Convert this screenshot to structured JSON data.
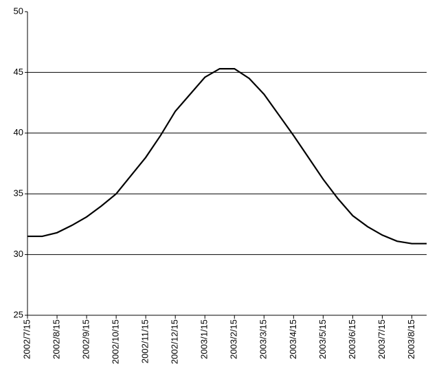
{
  "chart_data": {
    "type": "line",
    "categories": [
      "2002/7/15",
      null,
      "2002/8/15",
      null,
      "2002/9/15",
      null,
      "2002/10/15",
      null,
      "2002/11/15",
      null,
      "2002/12/15",
      null,
      "2003/1/15",
      null,
      "2003/2/15",
      null,
      "2003/3/15",
      null,
      "2003/4/15",
      null,
      "2003/5/15",
      null,
      "2003/6/15",
      null,
      "2003/7/15",
      null,
      "2003/8/15",
      null
    ],
    "values": [
      31.5,
      31.5,
      31.8,
      32.4,
      33.1,
      34.0,
      35.0,
      36.5,
      38.0,
      39.8,
      41.8,
      43.2,
      44.6,
      45.3,
      45.3,
      44.5,
      43.2,
      41.5,
      39.8,
      38.0,
      36.2,
      34.6,
      33.2,
      32.3,
      31.6,
      31.1,
      30.9,
      30.9
    ],
    "color": "#000000",
    "ylim": [
      25,
      50
    ],
    "yticks": [
      25,
      30,
      35,
      40,
      45,
      50
    ],
    "grid": true
  }
}
